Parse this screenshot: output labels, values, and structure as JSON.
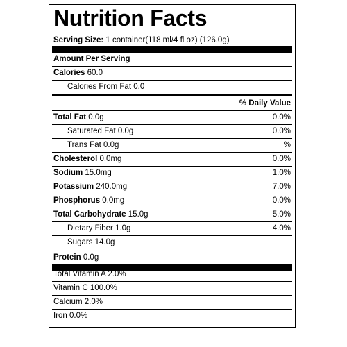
{
  "title": "Nutrition Facts",
  "serving": {
    "label": "Serving Size:",
    "value": "1 container(118 ml/4 fl oz) (126.0g)"
  },
  "amount_per_serving": "Amount Per Serving",
  "calories": {
    "label": "Calories",
    "value": "60.0"
  },
  "calories_from_fat": {
    "label": "Calories From Fat",
    "value": "0.0"
  },
  "daily_value_header": "% Daily Value",
  "nutrients": [
    {
      "label": "Total Fat",
      "amount": "0.0g",
      "dv": "0.0%"
    },
    {
      "label": "Saturated Fat",
      "amount": "0.0g",
      "dv": "0.0%"
    },
    {
      "label": "Trans Fat",
      "amount": "0.0g",
      "dv": "%"
    },
    {
      "label": "Cholesterol",
      "amount": "0.0mg",
      "dv": "0.0%"
    },
    {
      "label": "Sodium",
      "amount": "15.0mg",
      "dv": "1.0%"
    },
    {
      "label": "Potassium",
      "amount": "240.0mg",
      "dv": "7.0%"
    },
    {
      "label": "Phosphorus",
      "amount": "0.0mg",
      "dv": "0.0%"
    },
    {
      "label": "Total Carbohydrate",
      "amount": "15.0g",
      "dv": "5.0%"
    },
    {
      "label": "Dietary Fiber",
      "amount": "1.0g",
      "dv": "4.0%"
    },
    {
      "label": "Sugars",
      "amount": "14.0g",
      "dv": ""
    },
    {
      "label": "Protein",
      "amount": "0.0g",
      "dv": ""
    }
  ],
  "vitamins": [
    "Total Vitamin A 2.0%",
    "Vitamin C 100.0%",
    "Calcium 2.0%",
    "Iron 0.0%"
  ]
}
